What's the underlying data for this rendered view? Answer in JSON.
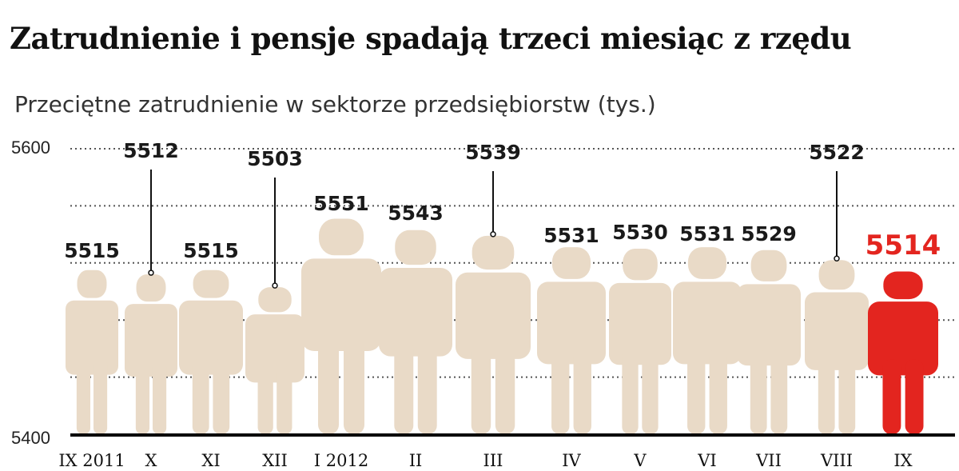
{
  "header": {
    "title": "Zatrudnienie i pensje spadają trzeci miesiąc z rzędu",
    "subtitle": "Przeciętne zatrudnienie w sektorze przedsiębiorstw (tys.)"
  },
  "colors": {
    "figure": "#e9dac7",
    "highlight": "#e3251f",
    "label": "#1a1a1a",
    "gridline": "#555555",
    "axis": "#000000"
  },
  "icon": "person-icon",
  "chart_data": {
    "type": "bar",
    "title": "Zatrudnienie i pensje spadają trzeci miesiąc z rzędu",
    "subtitle": "Przeciętne zatrudnienie w sektorze przedsiębiorstw (tys.)",
    "categories": [
      "IX 2011",
      "X",
      "XI",
      "XII",
      "I 2012",
      "II",
      "III",
      "IV",
      "V",
      "VI",
      "VII",
      "VIII",
      "IX"
    ],
    "values": [
      5515,
      5512,
      5515,
      5503,
      5551,
      5543,
      5539,
      5531,
      5530,
      5531,
      5529,
      5522,
      5514
    ],
    "ylim": [
      5400,
      5600
    ],
    "yticks": [
      "5400",
      "5600"
    ],
    "grid": true,
    "highlight_index": 12
  }
}
